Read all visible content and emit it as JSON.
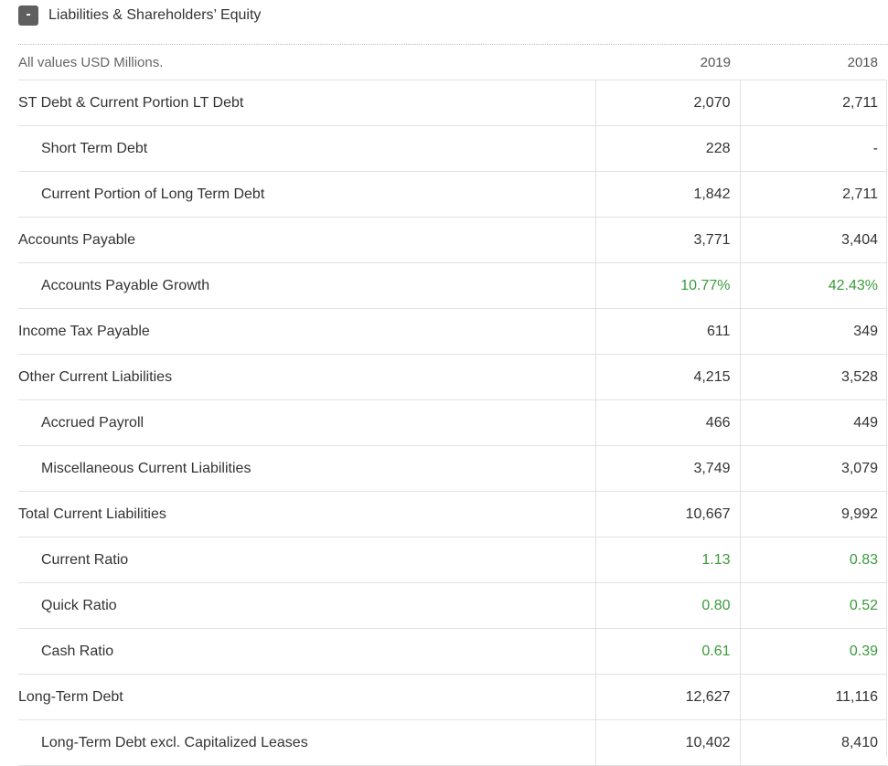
{
  "section": {
    "toggle_symbol": "-",
    "title": "Liabilities & Shareholders’ Equity"
  },
  "table": {
    "units_label": "All values USD Millions.",
    "years": [
      "2019",
      "2018"
    ],
    "rows": [
      {
        "label": "ST Debt & Current Portion LT Debt",
        "indent": false,
        "values": [
          "2,070",
          "2,711"
        ],
        "green": false
      },
      {
        "label": "Short Term Debt",
        "indent": true,
        "values": [
          "228",
          "-"
        ],
        "green": false
      },
      {
        "label": "Current Portion of Long Term Debt",
        "indent": true,
        "values": [
          "1,842",
          "2,711"
        ],
        "green": false
      },
      {
        "label": "Accounts Payable",
        "indent": false,
        "values": [
          "3,771",
          "3,404"
        ],
        "green": false
      },
      {
        "label": "Accounts Payable Growth",
        "indent": true,
        "values": [
          "10.77%",
          "42.43%"
        ],
        "green": true
      },
      {
        "label": "Income Tax Payable",
        "indent": false,
        "values": [
          "611",
          "349"
        ],
        "green": false
      },
      {
        "label": "Other Current Liabilities",
        "indent": false,
        "values": [
          "4,215",
          "3,528"
        ],
        "green": false
      },
      {
        "label": "Accrued Payroll",
        "indent": true,
        "values": [
          "466",
          "449"
        ],
        "green": false
      },
      {
        "label": "Miscellaneous Current Liabilities",
        "indent": true,
        "values": [
          "3,749",
          "3,079"
        ],
        "green": false
      },
      {
        "label": "Total Current Liabilities",
        "indent": false,
        "values": [
          "10,667",
          "9,992"
        ],
        "green": false
      },
      {
        "label": "Current Ratio",
        "indent": true,
        "values": [
          "1.13",
          "0.83"
        ],
        "green": true
      },
      {
        "label": "Quick Ratio",
        "indent": true,
        "values": [
          "0.80",
          "0.52"
        ],
        "green": true
      },
      {
        "label": "Cash Ratio",
        "indent": true,
        "values": [
          "0.61",
          "0.39"
        ],
        "green": true
      },
      {
        "label": "Long-Term Debt",
        "indent": false,
        "values": [
          "12,627",
          "11,116"
        ],
        "green": false
      },
      {
        "label": "Long-Term Debt excl. Capitalized Leases",
        "indent": true,
        "values": [
          "10,402",
          "8,410"
        ],
        "green": false
      }
    ]
  },
  "colors": {
    "positive": "#3b9b3b",
    "toggle_bg": "#5f5f5f"
  }
}
